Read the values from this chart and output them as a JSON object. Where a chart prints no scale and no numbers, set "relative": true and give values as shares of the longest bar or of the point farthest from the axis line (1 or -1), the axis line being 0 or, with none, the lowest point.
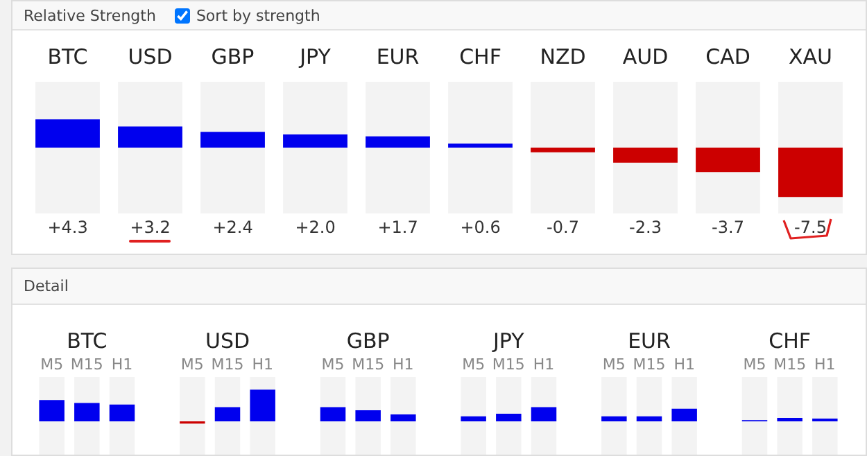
{
  "chart_data": [
    {
      "type": "bar",
      "title": "Relative Strength",
      "annotations": [
        "Sort by strength"
      ],
      "categories": [
        "BTC",
        "USD",
        "GBP",
        "JPY",
        "EUR",
        "CHF",
        "NZD",
        "AUD",
        "CAD",
        "XAU"
      ],
      "values": [
        4.3,
        3.2,
        2.4,
        2.0,
        1.7,
        0.6,
        -0.7,
        -2.3,
        -3.7,
        -7.5
      ],
      "colors": [
        "#0000ee",
        "#0000ee",
        "#0000ee",
        "#0000ee",
        "#0000ee",
        "#0000ee",
        "#cc0000",
        "#cc0000",
        "#cc0000",
        "#cc0000"
      ],
      "value_labels": [
        "+4.3",
        "+3.2",
        "+2.4",
        "+2.0",
        "+1.7",
        "+0.6",
        "-0.7",
        "-2.3",
        "-3.7",
        "-7.5"
      ],
      "ylim": [
        -10,
        10
      ],
      "grid": false
    },
    {
      "type": "bar",
      "title": "Detail",
      "relative": true,
      "categories": [
        "BTC",
        "USD",
        "GBP",
        "JPY",
        "EUR",
        "CHF"
      ],
      "grid": false,
      "series": [
        {
          "name": "M5",
          "colors": [
            "#0000ee",
            "#cc0000",
            "#0000ee",
            "#0000ee",
            "#0000ee",
            "#0000ee"
          ],
          "values": [
            0.67,
            -0.07,
            0.45,
            0.16,
            0.16,
            0.04
          ]
        },
        {
          "name": "M15",
          "colors": [
            "#0000ee",
            "#0000ee",
            "#0000ee",
            "#0000ee",
            "#0000ee",
            "#0000ee"
          ],
          "values": [
            0.58,
            0.45,
            0.35,
            0.24,
            0.16,
            0.11
          ]
        },
        {
          "name": "H1",
          "colors": [
            "#0000ee",
            "#0000ee",
            "#0000ee",
            "#0000ee",
            "#0000ee",
            "#0000ee"
          ],
          "values": [
            0.53,
            1,
            0.22,
            0.45,
            0.4,
            0.09
          ]
        }
      ]
    }
  ]
}
